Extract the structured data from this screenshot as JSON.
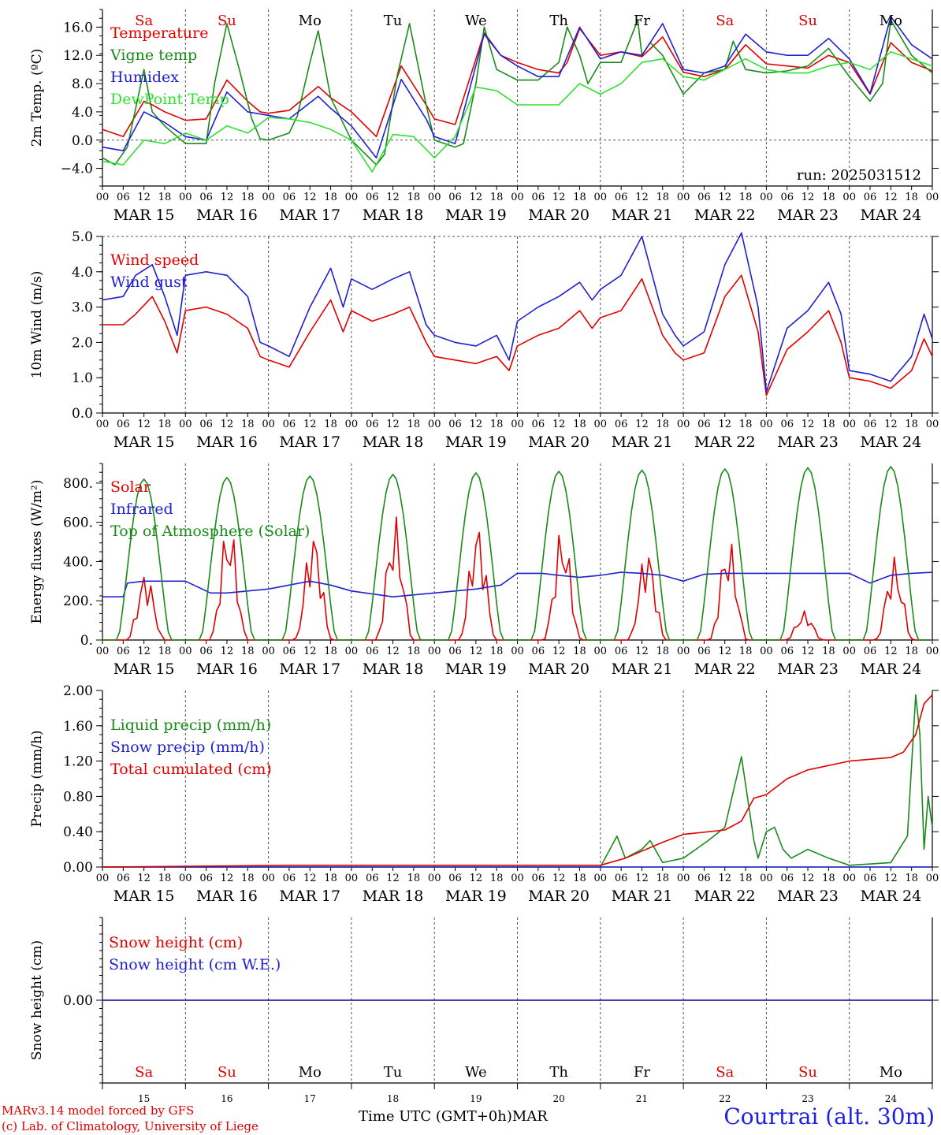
{
  "footer": {
    "model": "MARv3.14 model forced by GFS",
    "credit": "(c) Lab. of Climatology, University of Liege",
    "xtitle": "Time UTC (GMT+0h)",
    "month": "MAR",
    "station": "Courtrai (alt. 30m)"
  },
  "days": {
    "names": [
      "Sa",
      "Su",
      "Mo",
      "Tu",
      "We",
      "Th",
      "Fr",
      "Sa",
      "Su",
      "Mo"
    ],
    "name_colors": [
      "#e00000",
      "#e00000",
      "#000000",
      "#000000",
      "#000000",
      "#000000",
      "#000000",
      "#e00000",
      "#e00000",
      "#000000"
    ],
    "dates": [
      "MAR 15",
      "MAR 16",
      "MAR 17",
      "MAR 18",
      "MAR 19",
      "MAR 20",
      "MAR 21",
      "MAR 22",
      "MAR 23",
      "MAR 24"
    ],
    "numbers": [
      "15",
      "16",
      "17",
      "18",
      "19",
      "20",
      "21",
      "22",
      "23",
      "24"
    ],
    "hour_ticks": [
      "00",
      "06",
      "12",
      "18"
    ],
    "last_tick": "00"
  },
  "chart_data": [
    {
      "type": "line",
      "ylabel": "2m Temp. (ºC)",
      "ylim": [
        -6.5,
        18.5
      ],
      "yticks": [
        "16.0",
        "12.0",
        "8.0",
        "4.0",
        "0.0",
        "−4.0"
      ],
      "ytick_values": [
        16,
        12,
        8,
        4,
        0,
        -4
      ],
      "dashed_at": [
        0
      ],
      "annotation": "run: 2025031512",
      "x_unit": "day index from MAR 15 00 UTC",
      "series": [
        {
          "name": "Temperature",
          "color": "#e00000",
          "x": [
            0,
            0.25,
            0.5,
            0.6,
            0.75,
            0.9,
            1.0,
            1.25,
            1.5,
            1.75,
            1.9,
            2.0,
            2.25,
            2.6,
            2.75,
            3.0,
            3.3,
            3.6,
            3.9,
            4.0,
            4.25,
            4.6,
            4.8,
            5.0,
            5.25,
            5.5,
            5.6,
            5.75,
            6.0,
            6.25,
            6.5,
            6.75,
            7.0,
            7.25,
            7.5,
            7.75,
            8.0,
            8.25,
            8.5,
            8.75,
            9.0,
            9.25,
            9.5,
            9.75,
            10.0
          ],
          "y": [
            1.5,
            0.5,
            5.5,
            5.0,
            4.0,
            3.3,
            2.8,
            3.0,
            8.5,
            5.5,
            4.0,
            3.8,
            4.2,
            7.6,
            6.0,
            4.0,
            0.5,
            10.5,
            5.0,
            3.0,
            2.2,
            15.2,
            12.0,
            11.0,
            10.0,
            9.5,
            11.0,
            15.8,
            12.0,
            12.5,
            11.8,
            14.6,
            9.6,
            9.0,
            10.0,
            13.5,
            10.8,
            10.5,
            10.2,
            12.0,
            11.0,
            6.5,
            13.8,
            11.0,
            9.8
          ]
        },
        {
          "name": "Vigne temp",
          "color": "#1a8a1a",
          "x": [
            0,
            0.15,
            0.3,
            0.5,
            0.6,
            0.75,
            0.9,
            1.0,
            1.25,
            1.35,
            1.5,
            1.65,
            1.8,
            1.9,
            2.0,
            2.25,
            2.35,
            2.5,
            2.6,
            2.75,
            3.0,
            3.3,
            3.4,
            3.55,
            3.7,
            3.9,
            4.0,
            4.25,
            4.35,
            4.5,
            4.6,
            4.75,
            5.0,
            5.25,
            5.5,
            5.6,
            5.75,
            5.85,
            6.0,
            6.25,
            6.45,
            6.5,
            6.6,
            6.75,
            7.0,
            7.25,
            7.5,
            7.6,
            7.75,
            8.0,
            8.25,
            8.5,
            8.75,
            9.0,
            9.25,
            9.4,
            9.5,
            9.75,
            10.0
          ],
          "y": [
            -2.5,
            -3.5,
            -1.0,
            10.0,
            4.0,
            2.0,
            0.5,
            -0.5,
            -0.5,
            8.0,
            16.5,
            10.0,
            3.0,
            0.2,
            0.0,
            1.0,
            3.5,
            11.0,
            15.5,
            6.0,
            0.0,
            -3.5,
            -2.0,
            9.0,
            16.5,
            5.0,
            0.0,
            -1.0,
            -0.5,
            8.0,
            16.0,
            10.0,
            8.5,
            8.5,
            11.0,
            16.0,
            12.0,
            8.0,
            11.0,
            11.0,
            17.0,
            12.0,
            13.8,
            12.0,
            6.5,
            9.5,
            10.0,
            14.0,
            10.0,
            9.5,
            9.8,
            10.5,
            13.0,
            9.0,
            5.5,
            8.0,
            17.0,
            12.0,
            9.5
          ]
        },
        {
          "name": "Humidex",
          "color": "#2020d0",
          "x": [
            0,
            0.25,
            0.5,
            0.75,
            1.0,
            1.25,
            1.5,
            1.75,
            2.0,
            2.25,
            2.6,
            2.75,
            3.0,
            3.3,
            3.6,
            3.9,
            4.0,
            4.25,
            4.6,
            4.8,
            5.0,
            5.25,
            5.5,
            5.75,
            6.0,
            6.25,
            6.5,
            6.75,
            7.0,
            7.25,
            7.5,
            7.75,
            8.0,
            8.25,
            8.5,
            8.75,
            9.0,
            9.25,
            9.5,
            9.75,
            10.0
          ],
          "y": [
            -1.0,
            -1.5,
            4.0,
            2.5,
            0.5,
            0.0,
            6.8,
            4.0,
            3.5,
            3.0,
            6.2,
            4.5,
            2.0,
            -2.5,
            8.6,
            3.0,
            0.5,
            -0.5,
            15.0,
            12.0,
            10.5,
            9.0,
            9.0,
            16.0,
            11.5,
            12.5,
            12.0,
            16.5,
            10.0,
            9.5,
            10.5,
            15.0,
            12.5,
            12.0,
            12.0,
            14.4,
            11.5,
            6.6,
            17.5,
            13.5,
            11.5
          ]
        },
        {
          "name": "DewPoint Temp",
          "color": "#30e030",
          "x": [
            0,
            0.25,
            0.5,
            0.75,
            1.0,
            1.25,
            1.5,
            1.75,
            2.0,
            2.25,
            2.5,
            2.75,
            3.0,
            3.25,
            3.5,
            3.75,
            4.0,
            4.25,
            4.5,
            4.75,
            5.0,
            5.25,
            5.5,
            5.75,
            6.0,
            6.25,
            6.5,
            6.75,
            7.0,
            7.25,
            7.5,
            7.75,
            8.0,
            8.25,
            8.5,
            8.75,
            9.0,
            9.25,
            9.5,
            9.75,
            10.0
          ],
          "y": [
            -3.0,
            -3.5,
            0.0,
            -0.5,
            1.0,
            0.0,
            2.0,
            1.0,
            3.2,
            3.0,
            2.5,
            1.5,
            0.0,
            -4.5,
            0.8,
            0.5,
            -2.5,
            0.5,
            7.5,
            7.0,
            5.0,
            5.0,
            5.0,
            8.0,
            6.5,
            8.0,
            11.0,
            11.5,
            9.0,
            8.5,
            10.0,
            11.5,
            10.0,
            9.5,
            9.5,
            10.5,
            11.0,
            10.0,
            12.5,
            11.5,
            10.5
          ]
        }
      ]
    },
    {
      "type": "line",
      "ylabel": "10m Wind (m/s)",
      "ylim": [
        0,
        5.0
      ],
      "yticks": [
        "5.0",
        "4.0",
        "3.0",
        "2.0",
        "1.0",
        "0.0"
      ],
      "ytick_values": [
        5,
        4,
        3,
        2,
        1,
        0
      ],
      "dashed_at": [
        5.0
      ],
      "series": [
        {
          "name": "Wind speed",
          "color": "#e00000",
          "x": [
            0,
            0.25,
            0.4,
            0.6,
            0.75,
            0.9,
            1.0,
            1.25,
            1.5,
            1.75,
            1.9,
            2.0,
            2.25,
            2.5,
            2.75,
            2.9,
            3.0,
            3.25,
            3.5,
            3.7,
            3.9,
            4.0,
            4.25,
            4.5,
            4.75,
            4.9,
            5.0,
            5.25,
            5.5,
            5.75,
            5.9,
            6.0,
            6.25,
            6.5,
            6.75,
            6.9,
            7.0,
            7.25,
            7.5,
            7.7,
            7.9,
            8.0,
            8.25,
            8.5,
            8.75,
            8.9,
            9.0,
            9.25,
            9.5,
            9.75,
            9.9,
            10.0
          ],
          "y": [
            2.5,
            2.5,
            2.8,
            3.3,
            2.6,
            1.7,
            2.9,
            3.0,
            2.8,
            2.4,
            1.6,
            1.5,
            1.3,
            2.3,
            3.2,
            2.3,
            2.9,
            2.6,
            2.8,
            3.0,
            2.0,
            1.6,
            1.5,
            1.4,
            1.6,
            1.2,
            1.9,
            2.2,
            2.4,
            2.9,
            2.4,
            2.7,
            2.9,
            3.8,
            2.2,
            1.7,
            1.5,
            1.7,
            3.3,
            3.9,
            2.3,
            0.5,
            1.8,
            2.3,
            2.9,
            2.0,
            1.0,
            0.9,
            0.7,
            1.2,
            2.1,
            1.6
          ]
        },
        {
          "name": "Wind gust",
          "color": "#2020d0",
          "x": [
            0,
            0.25,
            0.4,
            0.6,
            0.75,
            0.9,
            1.0,
            1.25,
            1.5,
            1.75,
            1.9,
            2.0,
            2.25,
            2.5,
            2.75,
            2.9,
            3.0,
            3.25,
            3.5,
            3.7,
            3.9,
            4.0,
            4.25,
            4.5,
            4.75,
            4.9,
            5.0,
            5.25,
            5.5,
            5.75,
            5.9,
            6.0,
            6.25,
            6.5,
            6.75,
            6.9,
            7.0,
            7.25,
            7.5,
            7.7,
            7.9,
            8.0,
            8.25,
            8.5,
            8.75,
            8.9,
            9.0,
            9.25,
            9.5,
            9.75,
            9.9,
            10.0
          ],
          "y": [
            3.2,
            3.3,
            3.9,
            4.2,
            3.3,
            2.2,
            3.9,
            4.0,
            3.9,
            3.3,
            2.0,
            1.9,
            1.6,
            3.0,
            4.1,
            3.0,
            3.8,
            3.5,
            3.8,
            4.0,
            2.5,
            2.2,
            2.0,
            1.9,
            2.2,
            1.5,
            2.6,
            3.0,
            3.3,
            3.7,
            3.2,
            3.5,
            3.9,
            5.0,
            2.8,
            2.2,
            1.9,
            2.3,
            4.2,
            5.1,
            3.0,
            0.6,
            2.4,
            2.9,
            3.7,
            2.8,
            1.2,
            1.1,
            0.9,
            1.6,
            2.8,
            2.1
          ]
        }
      ]
    },
    {
      "type": "line",
      "ylabel": "Energy fluxes (W/m²)",
      "ylim": [
        0,
        900
      ],
      "yticks": [
        "800.",
        "600.",
        "400.",
        "200.",
        "0."
      ],
      "ytick_values": [
        800,
        600,
        400,
        200,
        0
      ],
      "dashed_at": [],
      "series": [
        {
          "name": "Solar",
          "color": "#e00000",
          "daily_peak": [
            360,
            620,
            580,
            640,
            620,
            590,
            490,
            530,
            150,
            430
          ],
          "daily_peak_hour": [
            12.5,
            12.5,
            13,
            12.5,
            12.5,
            13,
            13.5,
            13,
            11,
            13
          ]
        },
        {
          "name": "Infrared",
          "color": "#2020d0",
          "x": [
            0,
            0.25,
            0.3,
            0.5,
            0.75,
            1.0,
            1.3,
            1.5,
            1.75,
            2.0,
            2.25,
            2.5,
            2.75,
            3.0,
            3.5,
            4.0,
            4.5,
            4.8,
            5.0,
            5.3,
            5.5,
            5.75,
            6.0,
            6.25,
            6.5,
            6.75,
            7.0,
            7.25,
            7.5,
            7.75,
            8.0,
            8.5,
            9.0,
            9.25,
            9.5,
            9.75,
            10.0
          ],
          "y": [
            220,
            220,
            290,
            300,
            300,
            300,
            240,
            240,
            250,
            260,
            280,
            300,
            280,
            250,
            220,
            240,
            260,
            280,
            340,
            340,
            330,
            320,
            330,
            345,
            340,
            330,
            300,
            335,
            340,
            340,
            340,
            340,
            340,
            290,
            330,
            340,
            345
          ]
        },
        {
          "name": "Top of Atmosphere (Solar)",
          "color": "#1a8a1a",
          "daily_peak": [
            820,
            828,
            836,
            844,
            852,
            860,
            866,
            872,
            878,
            884
          ]
        }
      ]
    },
    {
      "type": "line",
      "ylabel": "Precip (mm/h)",
      "ylim": [
        0,
        2.0
      ],
      "yticks": [
        "2.00",
        "1.60",
        "1.20",
        "0.80",
        "0.40",
        "0.00"
      ],
      "ytick_values": [
        2.0,
        1.6,
        1.2,
        0.8,
        0.4,
        0.0
      ],
      "dashed_at": [],
      "series": [
        {
          "name": "Liquid precip (mm/h)",
          "color": "#1a8a1a",
          "x": [
            0,
            6.0,
            6.2,
            6.3,
            6.5,
            6.6,
            6.75,
            7.0,
            7.3,
            7.5,
            7.7,
            7.85,
            7.9,
            8.0,
            8.1,
            8.2,
            8.3,
            8.5,
            8.75,
            9.0,
            9.5,
            9.7,
            9.8,
            9.85,
            9.9,
            9.95,
            10.0
          ],
          "y": [
            0,
            0,
            0.35,
            0.1,
            0.2,
            0.3,
            0.05,
            0.1,
            0.3,
            0.45,
            1.25,
            0.3,
            0.1,
            0.4,
            0.45,
            0.2,
            0.1,
            0.2,
            0.1,
            0.02,
            0.05,
            0.35,
            1.95,
            1.5,
            0.2,
            0.8,
            0.45
          ]
        },
        {
          "name": "Snow precip (mm/h)",
          "color": "#2020d0",
          "x": [
            0,
            10.0
          ],
          "y": [
            0,
            0
          ]
        },
        {
          "name": "Total cumulated (cm)",
          "color": "#e00000",
          "x": [
            0,
            2.3,
            6.0,
            6.3,
            6.75,
            7.0,
            7.5,
            7.7,
            7.85,
            8.0,
            8.25,
            8.5,
            9.0,
            9.5,
            9.65,
            9.8,
            9.9,
            10.0
          ],
          "y": [
            0,
            0.02,
            0.02,
            0.1,
            0.28,
            0.37,
            0.42,
            0.52,
            0.78,
            0.82,
            1.0,
            1.1,
            1.2,
            1.24,
            1.3,
            1.5,
            1.85,
            1.95
          ]
        }
      ]
    },
    {
      "type": "line",
      "ylabel": "Snow height (cm)",
      "ylim": [
        -1,
        1
      ],
      "yticks": [
        "0.00"
      ],
      "ytick_values": [
        0
      ],
      "dashed_at": [],
      "series": [
        {
          "name": "Snow height (cm)",
          "color": "#e00000",
          "x": [
            0,
            10
          ],
          "y": [
            0,
            0
          ]
        },
        {
          "name": "Snow height (cm W.E.)",
          "color": "#2020d0",
          "x": [
            0,
            10
          ],
          "y": [
            0,
            0
          ]
        }
      ]
    }
  ]
}
